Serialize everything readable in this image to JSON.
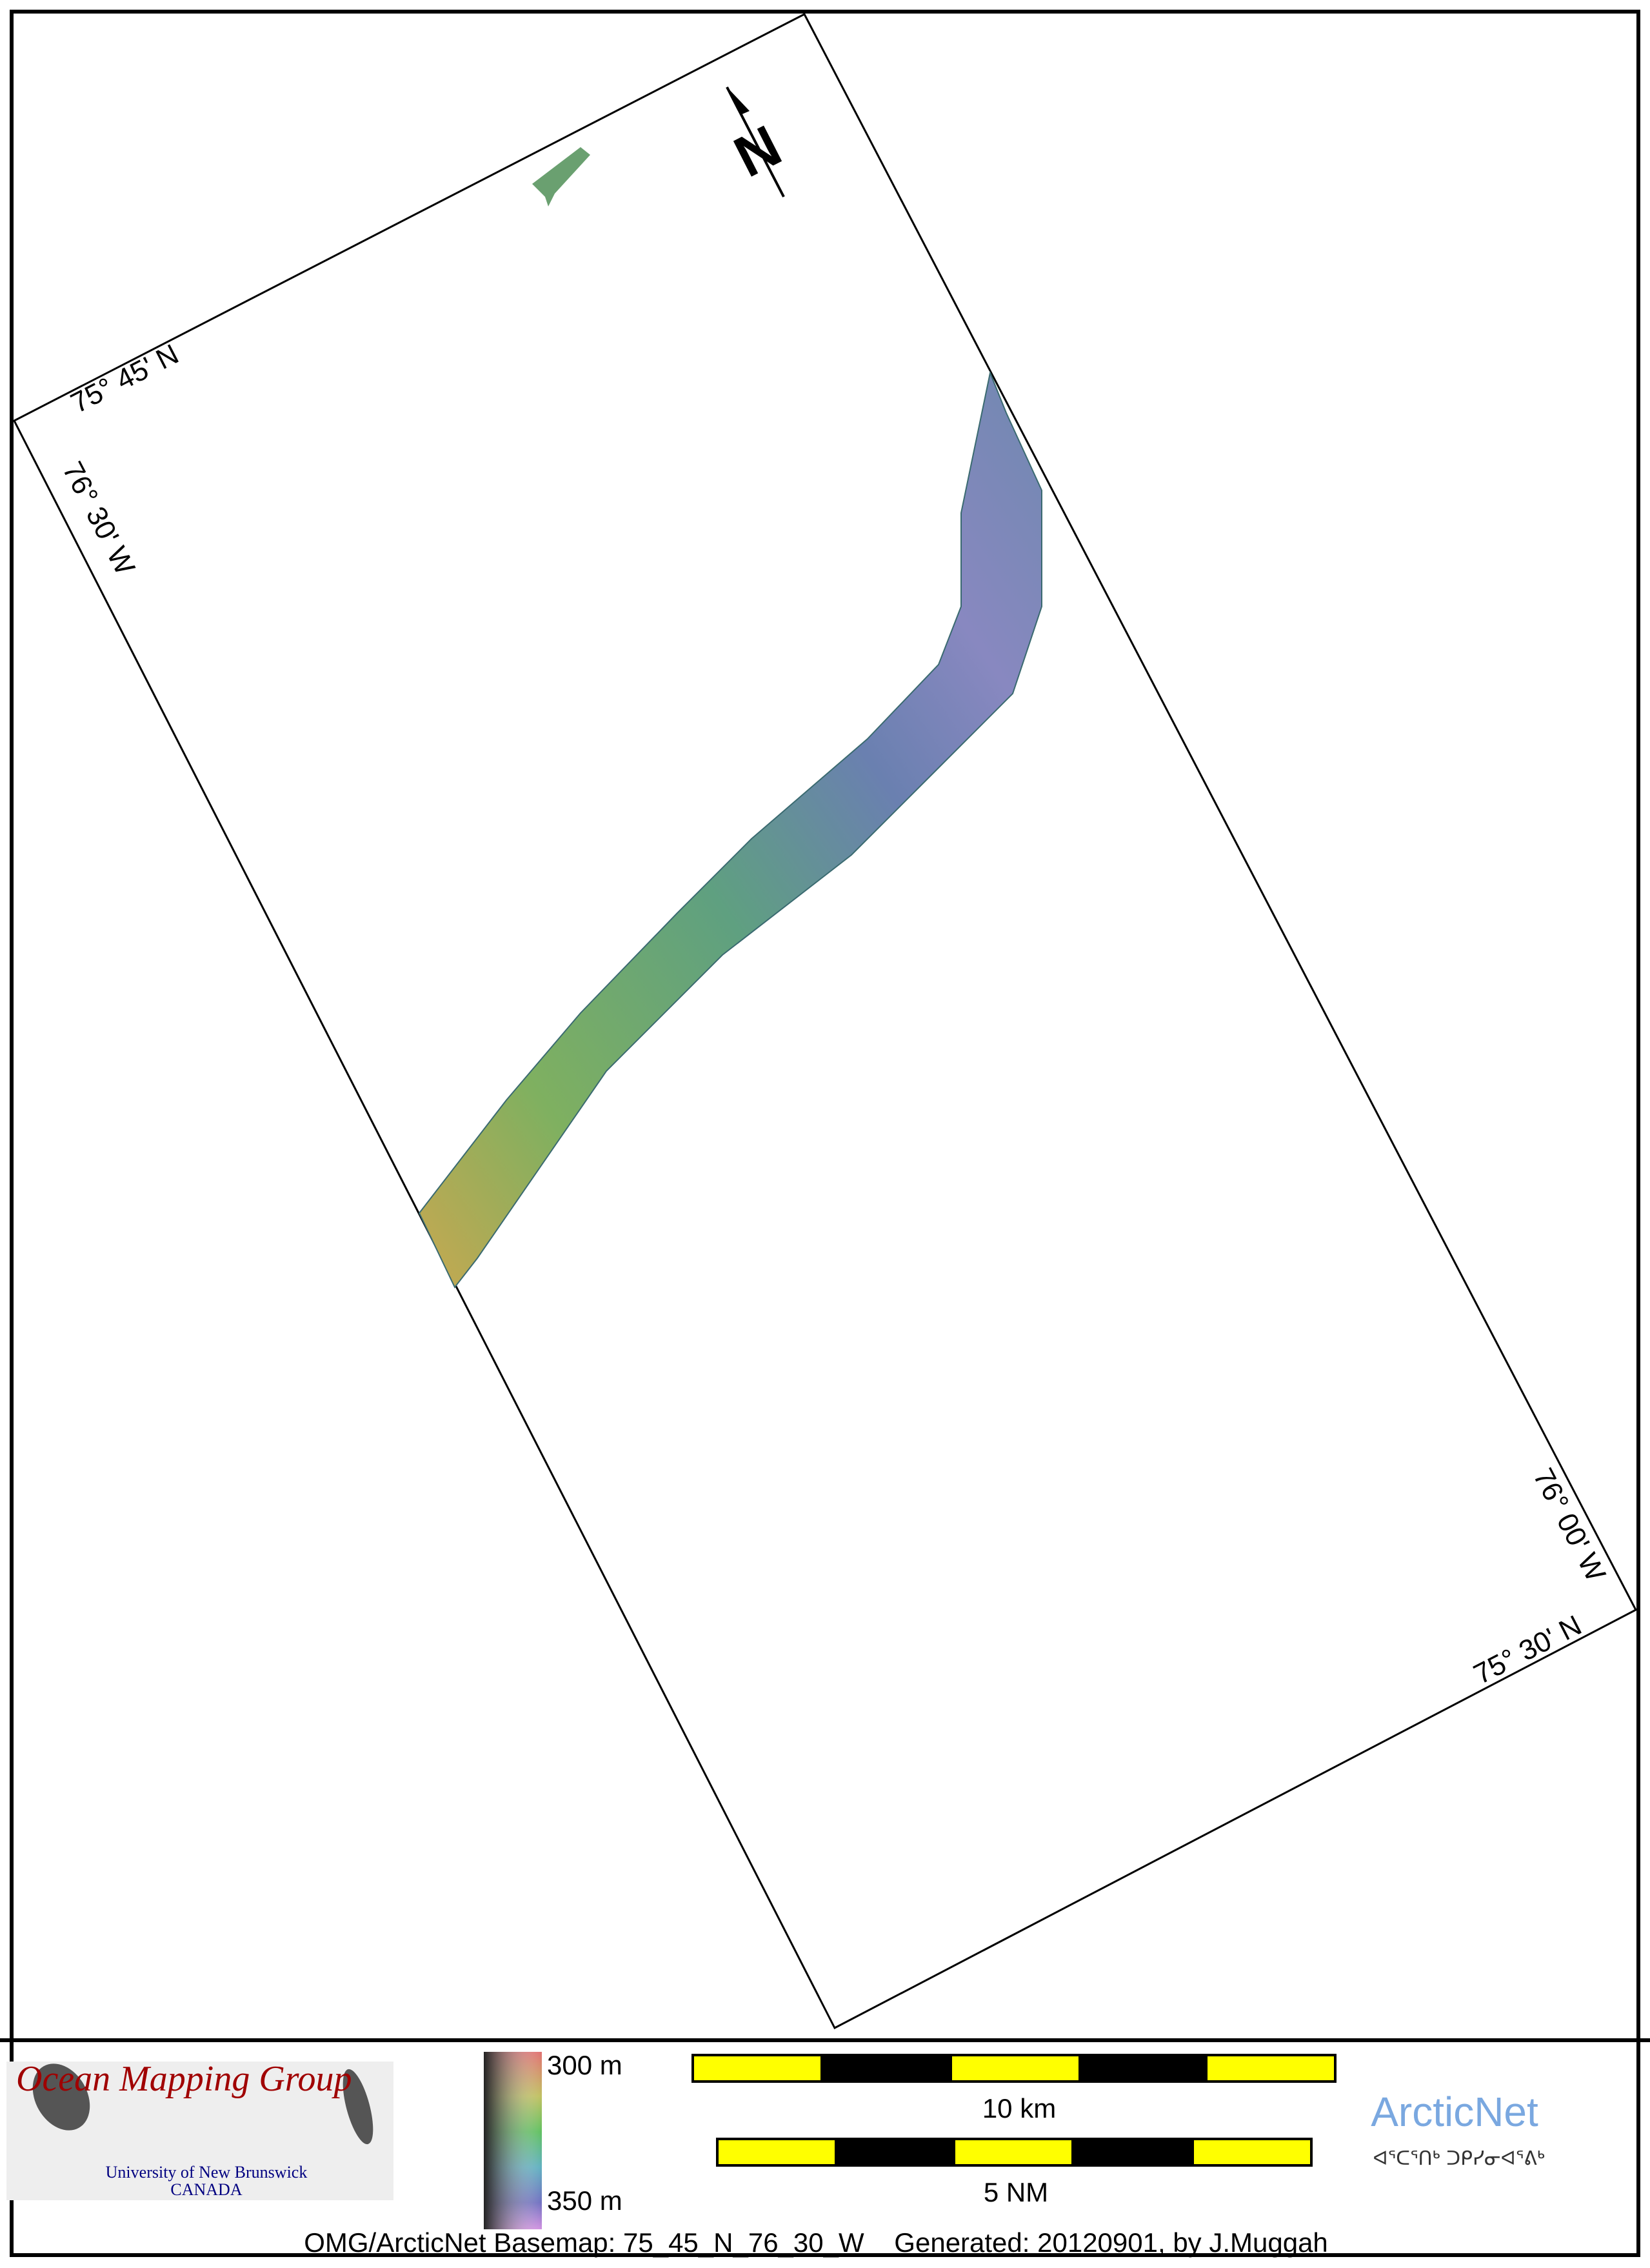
{
  "map": {
    "graticule_labels": {
      "top_lat": "75° 45' N",
      "left_lon": "76° 30' W",
      "right_lon": "76° 00' W",
      "bottom_lat": "75° 30' N"
    },
    "north_arrow": "N",
    "icon": "north-arrow-icon"
  },
  "legend": {
    "colorbar_top": "300 m",
    "colorbar_bottom": "350 m",
    "scale_km": "10 km",
    "scale_nm": "5 NM",
    "colors": {
      "scale_yellow": "#ffff00",
      "scale_black": "#000000"
    }
  },
  "logos": {
    "omg_title": "Ocean Mapping Group",
    "omg_sub1": "University of New Brunswick",
    "omg_sub2": "CANADA",
    "arcticnet": "ArcticNet",
    "arcticnet_inuktitut": "ᐊᕐᑕᕐᑎᒃ ᑐᑭᓯᓂᐊᕐᕕᒃ"
  },
  "footer": "OMG/ArcticNet Basemap: 75_45_N_76_30_W    Generated: 20120901, by J.Muggah"
}
